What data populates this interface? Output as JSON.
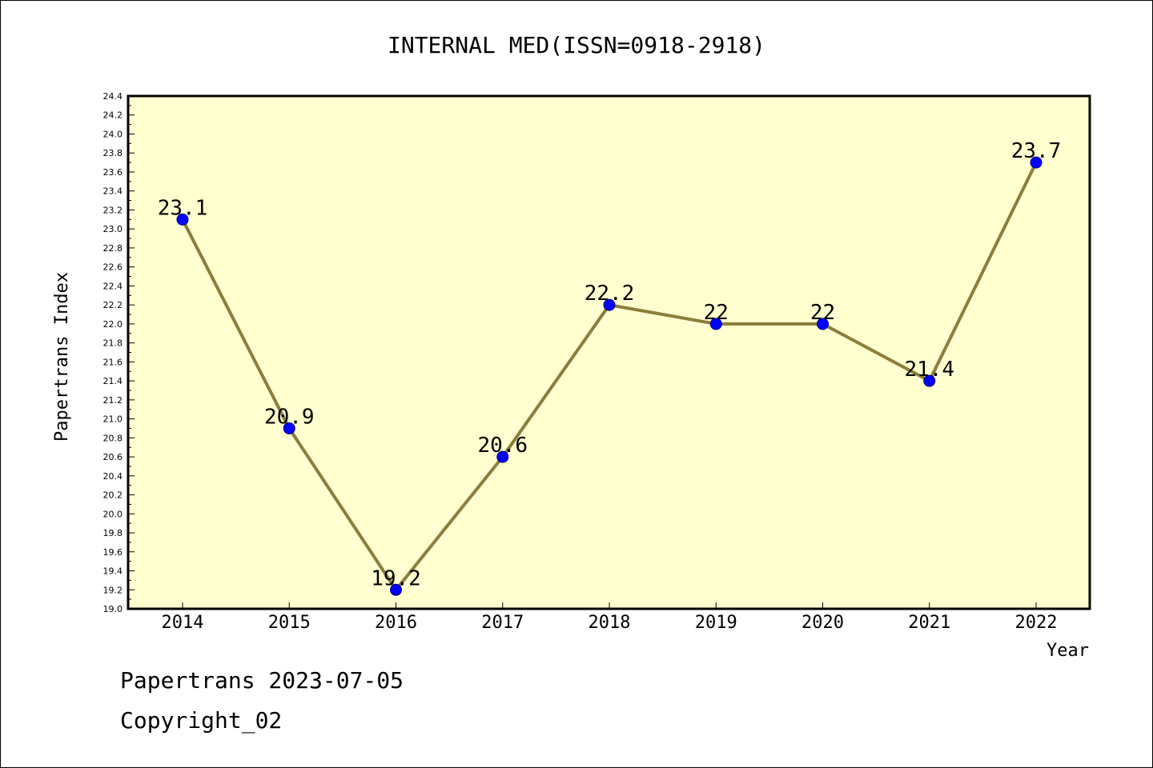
{
  "chart_data": {
    "type": "line",
    "title": "INTERNAL MED(ISSN=0918-2918)",
    "xlabel": "Year",
    "ylabel": "Papertrans Index",
    "categories": [
      "2014",
      "2015",
      "2016",
      "2017",
      "2018",
      "2019",
      "2020",
      "2021",
      "2022"
    ],
    "values": [
      23.1,
      20.9,
      19.2,
      20.6,
      22.2,
      22,
      22,
      21.4,
      23.7
    ],
    "data_labels": [
      "23.1",
      "20.9",
      "19.2",
      "20.6",
      "22.2",
      "22",
      "22",
      "21.4",
      "23.7"
    ],
    "ylim": [
      19.0,
      24.4
    ],
    "ytick_step": 0.2,
    "grid": false,
    "colors": {
      "plot_background": "#ffffd0",
      "line": "#8b7d3a",
      "marker": "#0000ff",
      "marker_edge": "#000080"
    }
  },
  "footer": {
    "line1": "Papertrans 2023-07-05",
    "line2": "Copyright_02"
  }
}
